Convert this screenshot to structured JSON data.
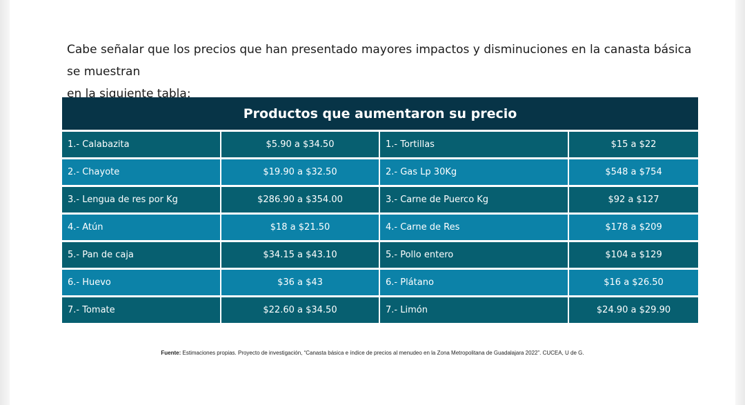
{
  "intro": {
    "line1": "Cabe señalar que los precios que han presentado mayores impactos y disminuciones en la canasta básica se muestran",
    "line2": "en la siguiente tabla:"
  },
  "table": {
    "title": "Productos que aumentaron su precio",
    "rows": [
      {
        "p1": "1.- Calabazita",
        "v1": "$5.90 a $34.50",
        "p2": "1.- Tortillas",
        "v2": "$15 a $22"
      },
      {
        "p1": "2.-  Chayote",
        "v1": "$19.90 a $32.50",
        "p2": "2.- Gas Lp 30Kg",
        "v2": "$548 a $754"
      },
      {
        "p1": "3.- Lengua de res por Kg",
        "v1": "$286.90 a $354.00",
        "p2": "3.- Carne de Puerco Kg",
        "v2": "$92 a $127"
      },
      {
        "p1": "4.- Atún",
        "v1": "$18 a $21.50",
        "p2": "4.- Carne de Res",
        "v2": "$178 a $209"
      },
      {
        "p1": "5.- Pan de caja",
        "v1": "$34.15 a $43.10",
        "p2": "5.- Pollo entero",
        "v2": "$104 a $129"
      },
      {
        "p1": "6.- Huevo",
        "v1": "$36 a $43",
        "p2": "6.- Plátano",
        "v2": "$16 a $26.50"
      },
      {
        "p1": "7.-  Tomate",
        "v1": "$22.60 a $34.50",
        "p2": "7.- Limón",
        "v2": "$24.90 a $29.90"
      }
    ]
  },
  "source": {
    "label": "Fuente:",
    "text": " Estimaciones propias. Proyecto de investigación, “Canasta básica e índice de precios al menudeo en la Zona Metropolitana de Guadalajara 2022”. CUCEA, U de G."
  }
}
